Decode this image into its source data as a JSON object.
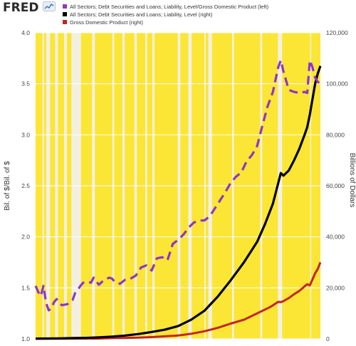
{
  "header": {
    "logo_text": "FRED",
    "logo_icon": "chart-line-icon",
    "legend": [
      {
        "label": "All Sectors; Debt Securities and Loans; Liability, Level/Gross Domestic Product (left)",
        "color": "#8e35c9"
      },
      {
        "label": "All Sectors; Debt Securities and Loans; Liability, Level (right)",
        "color": "#000000"
      },
      {
        "label": "Gross Domestic Product (right)",
        "color": "#c4241c"
      }
    ]
  },
  "colors": {
    "plot_background": "#fbe635",
    "recession_shading": "#f3f0e3",
    "gridline": "#ffffff"
  },
  "chart_data": {
    "type": "line",
    "ylabel_left": "Bil. of $/Bil. of $",
    "ylabel_right": "Billions of Dollars",
    "ylim_left": [
      1.0,
      4.0
    ],
    "ylim_right": [
      0,
      120000
    ],
    "yticks_left": [
      "1.0",
      "1.5",
      "2.0",
      "2.5",
      "3.0",
      "3.5",
      "4.0"
    ],
    "yticks_right": [
      "0",
      "20,000",
      "40,000",
      "60,000",
      "80,000",
      "100,000",
      "120,000"
    ],
    "x_range": [
      1916,
      2024
    ],
    "shading": [
      [
        1918.6,
        1919.2
      ],
      [
        1920.0,
        1921.5
      ],
      [
        1923.4,
        1924.5
      ],
      [
        1926.8,
        1927.9
      ],
      [
        1929.6,
        1933.2
      ],
      [
        1937.4,
        1938.5
      ],
      [
        1945.1,
        1945.8
      ],
      [
        1948.9,
        1949.8
      ],
      [
        1953.5,
        1954.4
      ],
      [
        1957.6,
        1958.3
      ],
      [
        1960.3,
        1961.1
      ],
      [
        1969.9,
        1970.9
      ],
      [
        1973.9,
        1975.2
      ],
      [
        1980.0,
        1980.5
      ],
      [
        1981.5,
        1982.9
      ],
      [
        1990.5,
        1991.2
      ],
      [
        2001.2,
        2001.9
      ],
      [
        2007.9,
        2009.5
      ],
      [
        2020.1,
        2020.4
      ]
    ],
    "series": [
      {
        "name": "All Sectors; Debt Securities and Loans; Liability, Level/Gross Domestic Product (left)",
        "axis": "left",
        "style": "dashed",
        "color": "#8e35c9",
        "x": [
          1916,
          1917,
          1918,
          1919,
          1920,
          1921,
          1922,
          1923,
          1924,
          1925,
          1926,
          1928,
          1930,
          1931,
          1932,
          1933,
          1934,
          1936,
          1937,
          1938,
          1940,
          1942,
          1944,
          1945,
          1946,
          1948,
          1950,
          1952,
          1954,
          1955,
          1956,
          1958,
          1960,
          1962,
          1964,
          1966,
          1968,
          1970,
          1972,
          1974,
          1976,
          1978,
          1980,
          1982,
          1984,
          1986,
          1988,
          1990,
          1992,
          1994,
          1996,
          1998,
          2000,
          2002,
          2004,
          2006,
          2008,
          2009,
          2010,
          2012,
          2014,
          2016,
          2018,
          2019,
          2020,
          2021,
          2022,
          2023,
          2024
        ],
        "y": [
          1.52,
          1.46,
          1.42,
          1.52,
          1.35,
          1.28,
          1.3,
          1.36,
          1.39,
          1.35,
          1.33,
          1.34,
          1.38,
          1.45,
          1.48,
          1.52,
          1.55,
          1.56,
          1.55,
          1.6,
          1.53,
          1.58,
          1.6,
          1.59,
          1.56,
          1.54,
          1.58,
          1.59,
          1.62,
          1.66,
          1.7,
          1.72,
          1.67,
          1.79,
          1.8,
          1.77,
          1.93,
          1.97,
          2.02,
          2.09,
          2.14,
          2.16,
          2.16,
          2.2,
          2.28,
          2.36,
          2.44,
          2.53,
          2.59,
          2.63,
          2.74,
          2.8,
          2.89,
          3.09,
          3.28,
          3.42,
          3.66,
          3.73,
          3.62,
          3.44,
          3.42,
          3.41,
          3.42,
          3.41,
          3.73,
          3.66,
          3.56,
          3.52,
          3.49
        ]
      },
      {
        "name": "All Sectors; Debt Securities and Loans; Liability, Level (right)",
        "axis": "right",
        "style": "solid",
        "color": "#000000",
        "x": [
          1916,
          1920,
          1925,
          1930,
          1935,
          1940,
          1945,
          1950,
          1955,
          1960,
          1965,
          1970,
          1975,
          1980,
          1985,
          1990,
          1995,
          2000,
          2003,
          2006,
          2008,
          2009,
          2010,
          2012,
          2014,
          2016,
          2018,
          2019,
          2020,
          2021,
          2022,
          2023,
          2024
        ],
        "y": [
          100,
          150,
          200,
          300,
          400,
          600,
          900,
          1300,
          1900,
          2700,
          3600,
          5000,
          7500,
          11000,
          16500,
          23000,
          30000,
          38000,
          45000,
          53000,
          61000,
          65000,
          64000,
          66000,
          70000,
          74500,
          80000,
          83000,
          88000,
          94000,
          100000,
          104000,
          107000
        ]
      },
      {
        "name": "Gross Domestic Product (right)",
        "axis": "right",
        "style": "solid",
        "color": "#c4241c",
        "x": [
          1916,
          1920,
          1925,
          1930,
          1935,
          1940,
          1945,
          1950,
          1955,
          1960,
          1965,
          1970,
          1975,
          1980,
          1985,
          1990,
          1995,
          2000,
          2005,
          2008,
          2009,
          2010,
          2012,
          2014,
          2016,
          2018,
          2019,
          2020,
          2021,
          2022,
          2023,
          2024
        ],
        "y": [
          50,
          70,
          90,
          100,
          110,
          150,
          300,
          400,
          500,
          700,
          1000,
          1300,
          2000,
          3000,
          4300,
          6000,
          7500,
          10000,
          12500,
          14500,
          14400,
          14800,
          16000,
          17500,
          18800,
          20600,
          21400,
          21000,
          23300,
          25700,
          27400,
          30000
        ]
      }
    ]
  }
}
